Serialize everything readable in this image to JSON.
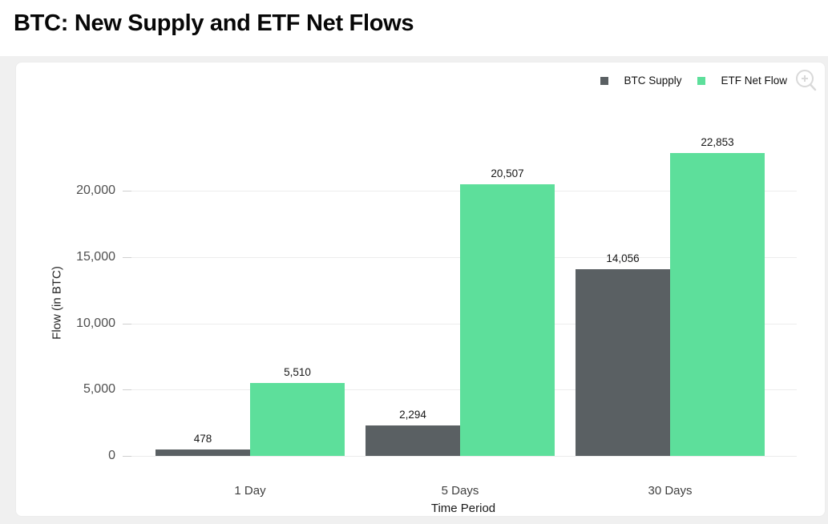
{
  "header": {
    "title": "BTC: New Supply and ETF Net Flows"
  },
  "legend": {
    "items": [
      {
        "label": "BTC Supply",
        "color": "#5a6063"
      },
      {
        "label": "ETF Net Flow",
        "color": "#5ddf9b"
      }
    ]
  },
  "icons": {
    "zoom_in": "magnifier-plus-icon",
    "color": "#d9d9d9"
  },
  "colors": {
    "btc_supply": "#5a6063",
    "etf_net_flow": "#5ddf9b",
    "gridline": "#ececec",
    "card_background": "#ffffff",
    "page_background": "#f0f0f0"
  },
  "chart_data": {
    "type": "bar",
    "title": "BTC: New Supply and ETF Net Flows",
    "categories": [
      "1 Day",
      "5 Days",
      "30 Days"
    ],
    "series": [
      {
        "name": "BTC Supply",
        "color": "#5a6063",
        "values": [
          478,
          2294,
          14056
        ]
      },
      {
        "name": "ETF Net Flow",
        "color": "#5ddf9b",
        "values": [
          5510,
          20507,
          22853
        ]
      }
    ],
    "xlabel": "Time Period",
    "ylabel": "Flow (in BTC)",
    "ylim": [
      0,
      24000
    ],
    "yticks": [
      0,
      5000,
      10000,
      15000,
      20000
    ],
    "grid": true,
    "value_labels": true,
    "legend_position": "top-right"
  }
}
